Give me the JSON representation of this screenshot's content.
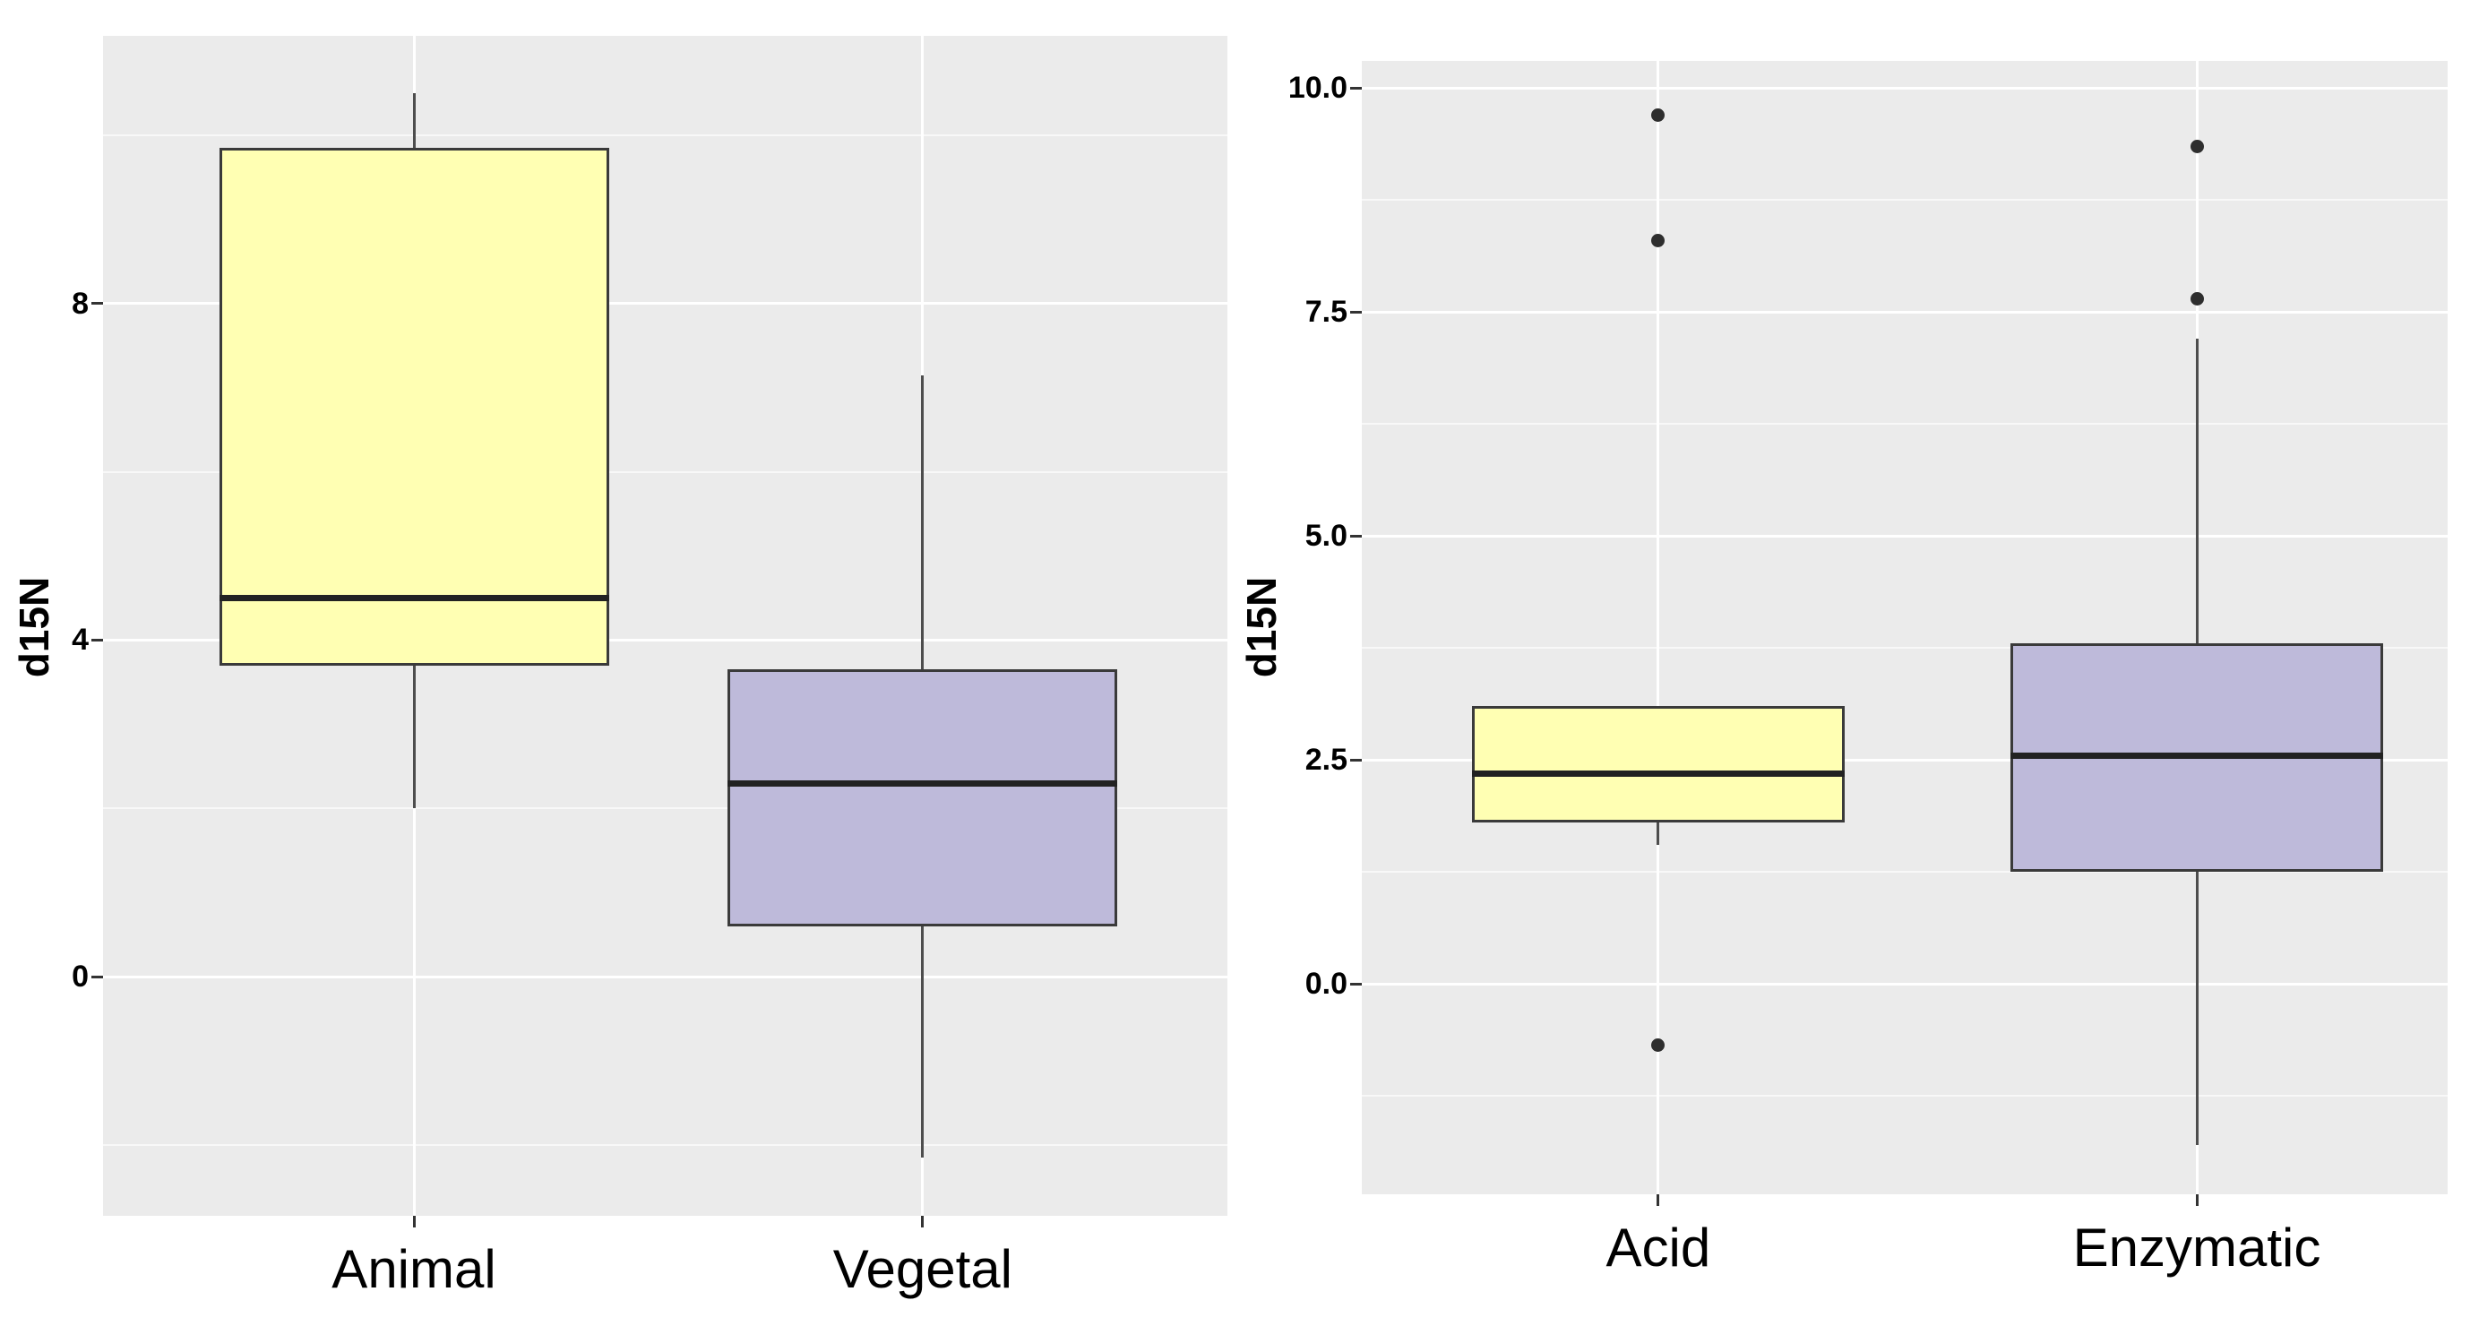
{
  "figure": {
    "description": "Two side-by-side grey-panel boxplot charts of d15N",
    "background": "#FFFFFF"
  },
  "colors": {
    "panel_bg": "#EBEBEB",
    "grid_major": "#FFFFFF",
    "grid_minor": "#FFFFFF",
    "box_border": "#3A3A3A",
    "median": "#222222",
    "whisker": "#4D4D4D",
    "outlier": "#2E2E2E",
    "text": "#000000",
    "fill_yellow": "#FFFFB3",
    "fill_lavender": "#BEBADA"
  },
  "chart_data": [
    {
      "type": "boxplot",
      "title": "",
      "xlabel": "",
      "ylabel": "d15N",
      "categories": [
        "Animal",
        "Vegetal"
      ],
      "ylim": [
        -2.84,
        11.18
      ],
      "grid": true,
      "legend_position": "none",
      "yticks": [
        {
          "v": 0,
          "label": "0"
        },
        {
          "v": 4,
          "label": "4"
        },
        {
          "v": 8,
          "label": "8"
        }
      ],
      "yminor": [
        -2,
        2,
        6,
        10
      ],
      "series": [
        {
          "name": "Animal",
          "fill": "#FFFFB3",
          "whisker_low": 2.0,
          "q1": 3.7,
          "median": 4.5,
          "q3": 9.85,
          "whisker_high": 10.5,
          "outliers": []
        },
        {
          "name": "Vegetal",
          "fill": "#BEBADA",
          "whisker_low": -2.15,
          "q1": 0.6,
          "median": 2.3,
          "q3": 3.65,
          "whisker_high": 7.15,
          "outliers": []
        }
      ]
    },
    {
      "type": "boxplot",
      "title": "",
      "xlabel": "",
      "ylabel": "d15N",
      "categories": [
        "Acid",
        "Enzymatic"
      ],
      "ylim": [
        -2.35,
        10.3
      ],
      "grid": true,
      "legend_position": "none",
      "yticks": [
        {
          "v": 0,
          "label": "0.0"
        },
        {
          "v": 2.5,
          "label": "2.5"
        },
        {
          "v": 5,
          "label": "5.0"
        },
        {
          "v": 7.5,
          "label": "7.5"
        },
        {
          "v": 10,
          "label": "10.0"
        }
      ],
      "yminor": [
        -1.25,
        1.25,
        3.75,
        6.25,
        8.75
      ],
      "series": [
        {
          "name": "Acid",
          "fill": "#FFFFB3",
          "whisker_low": 1.55,
          "q1": 1.8,
          "median": 2.35,
          "q3": 3.1,
          "whisker_high": 3.1,
          "outliers": [
            9.7,
            8.3,
            -0.68
          ]
        },
        {
          "name": "Enzymatic",
          "fill": "#BEBADA",
          "whisker_low": -1.8,
          "q1": 1.25,
          "median": 2.55,
          "q3": 3.8,
          "whisker_high": 7.2,
          "outliers": [
            9.35,
            7.65
          ]
        }
      ]
    }
  ]
}
